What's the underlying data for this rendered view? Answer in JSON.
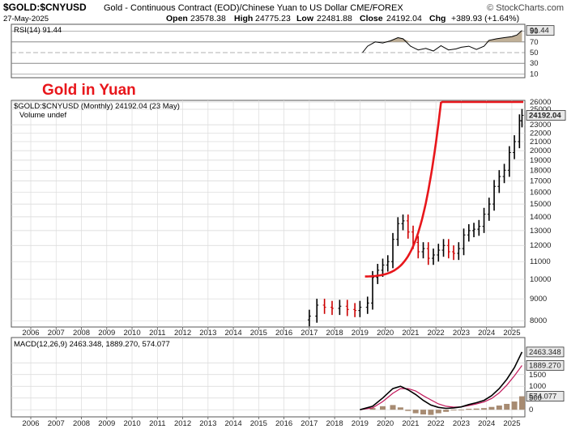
{
  "header": {
    "symbol": "$GOLD:$CNYUSD",
    "description": "Gold - Continuous Contract (EOD)/Chinese Yuan to US Dollar  CME/FOREX",
    "watermark": "© StockCharts.com",
    "date": "27-May-2025",
    "open_label": "Open",
    "open": "23578.38",
    "high_label": "High",
    "high": "24775.23",
    "low_label": "Low",
    "low": "22481.88",
    "close_label": "Close",
    "close": "24192.04",
    "chg_label": "Chg",
    "chg": "+389.93 (+1.64%)"
  },
  "annotation": "Gold in Yuan",
  "colors": {
    "accent_red": "#e8161b",
    "rsi_fill": "#b9a78d",
    "macd_signal": "#c2185b",
    "hist": "#a78b72",
    "up_bar": "#000000",
    "down_bar": "#cc0000",
    "badge_bg": "#e9e9e9"
  },
  "chart_data": [
    {
      "type": "line",
      "title": "RSI(14) 91.44",
      "series": [
        {
          "name": "RSI(14)",
          "x": [
            2019.1,
            2019.3,
            2019.6,
            2019.9,
            2020.2,
            2020.5,
            2020.7,
            2021.0,
            2021.3,
            2021.6,
            2021.9,
            2022.2,
            2022.5,
            2022.8,
            2023.0,
            2023.3,
            2023.6,
            2023.9,
            2024.1,
            2024.4,
            2024.7,
            2025.0,
            2025.2,
            2025.4
          ],
          "y": [
            50,
            62,
            70,
            68,
            72,
            78,
            76,
            62,
            55,
            58,
            53,
            63,
            55,
            57,
            60,
            62,
            56,
            62,
            73,
            76,
            78,
            80,
            83,
            91.44
          ]
        }
      ],
      "ylim": [
        0,
        100
      ],
      "ticks": [
        "91.44",
        "90",
        "70",
        "50",
        "30",
        "10"
      ],
      "reference_lines": [
        70,
        50,
        30
      ]
    },
    {
      "type": "bar",
      "title": "$GOLD:$CNYUSD (Monthly) 24192.04 (23 May)",
      "subtitle": "Volume undef",
      "series": [
        {
          "name": "$GOLD:$CNYUSD",
          "x": [
            2017.0,
            2017.3,
            2017.6,
            2017.9,
            2018.2,
            2018.5,
            2018.8,
            2019.0,
            2019.3,
            2019.5,
            2019.7,
            2019.9,
            2020.1,
            2020.3,
            2020.5,
            2020.7,
            2020.9,
            2021.1,
            2021.3,
            2021.5,
            2021.7,
            2021.9,
            2022.1,
            2022.3,
            2022.5,
            2022.7,
            2022.9,
            2023.1,
            2023.3,
            2023.5,
            2023.7,
            2023.9,
            2024.1,
            2024.3,
            2024.5,
            2024.7,
            2024.9,
            2025.1,
            2025.3,
            2025.4
          ],
          "y": [
            8200,
            8700,
            8600,
            8550,
            8650,
            8500,
            8450,
            8600,
            8800,
            10100,
            10500,
            10800,
            11000,
            12400,
            13500,
            13700,
            12900,
            12200,
            11600,
            11800,
            11200,
            11400,
            11700,
            12000,
            11600,
            11500,
            11800,
            12700,
            13000,
            13100,
            13300,
            14200,
            15000,
            16500,
            17400,
            18000,
            19800,
            21000,
            23500,
            24192.04
          ]
        }
      ],
      "ylim": [
        7800,
        26000
      ],
      "ticks": [
        "26000",
        "25000",
        "24192.04",
        "23000",
        "22000",
        "21000",
        "20000",
        "19000",
        "18000",
        "17000",
        "16000",
        "15000",
        "14000",
        "13000",
        "12000",
        "11000",
        "10000",
        "9000",
        "8000"
      ],
      "x_ticks": [
        "2006",
        "2007",
        "2008",
        "2009",
        "2010",
        "2011",
        "2012",
        "2013",
        "2014",
        "2015",
        "2016",
        "2017",
        "2018",
        "2019",
        "2020",
        "2021",
        "2022",
        "2023",
        "2024",
        "2025"
      ]
    },
    {
      "type": "line",
      "title": "MACD(12,26,9) 2463.348, 1889.270, 574.077",
      "series": [
        {
          "name": "MACD",
          "x": [
            2019.0,
            2019.5,
            2019.9,
            2020.3,
            2020.6,
            2020.9,
            2021.2,
            2021.5,
            2021.8,
            2022.1,
            2022.4,
            2022.7,
            2023.0,
            2023.3,
            2023.6,
            2023.9,
            2024.2,
            2024.5,
            2024.8,
            2025.1,
            2025.4
          ],
          "y": [
            0,
            150,
            500,
            900,
            1000,
            850,
            650,
            400,
            200,
            100,
            60,
            80,
            120,
            220,
            300,
            400,
            600,
            900,
            1300,
            1800,
            2463.348
          ]
        },
        {
          "name": "Signal",
          "x": [
            2019.0,
            2019.5,
            2019.9,
            2020.3,
            2020.6,
            2020.9,
            2021.2,
            2021.5,
            2021.8,
            2022.1,
            2022.4,
            2022.7,
            2023.0,
            2023.3,
            2023.6,
            2023.9,
            2024.2,
            2024.5,
            2024.8,
            2025.1,
            2025.4
          ],
          "y": [
            0,
            80,
            350,
            700,
            900,
            900,
            800,
            600,
            420,
            250,
            150,
            110,
            120,
            180,
            250,
            330,
            480,
            720,
            1050,
            1450,
            1889.27
          ]
        },
        {
          "name": "Histogram",
          "x": [
            2019.5,
            2019.9,
            2020.3,
            2020.6,
            2020.9,
            2021.2,
            2021.5,
            2021.8,
            2022.1,
            2022.4,
            2022.7,
            2023.0,
            2023.3,
            2023.6,
            2023.9,
            2024.2,
            2024.5,
            2024.8,
            2025.1,
            2025.4
          ],
          "y": [
            70,
            150,
            200,
            100,
            -50,
            -150,
            -200,
            -220,
            -150,
            -90,
            -30,
            0,
            40,
            50,
            70,
            120,
            180,
            250,
            350,
            574.077
          ]
        }
      ],
      "ylim": [
        -200,
        2700
      ],
      "ticks": [
        "2463.348",
        "2000",
        "1889.270",
        "1500",
        "1000",
        "574.077",
        "500",
        "0"
      ],
      "x_ticks": [
        "2006",
        "2007",
        "2008",
        "2009",
        "2010",
        "2011",
        "2012",
        "2013",
        "2014",
        "2015",
        "2016",
        "2017",
        "2018",
        "2019",
        "2020",
        "2021",
        "2022",
        "2023",
        "2024",
        "2025"
      ]
    }
  ]
}
